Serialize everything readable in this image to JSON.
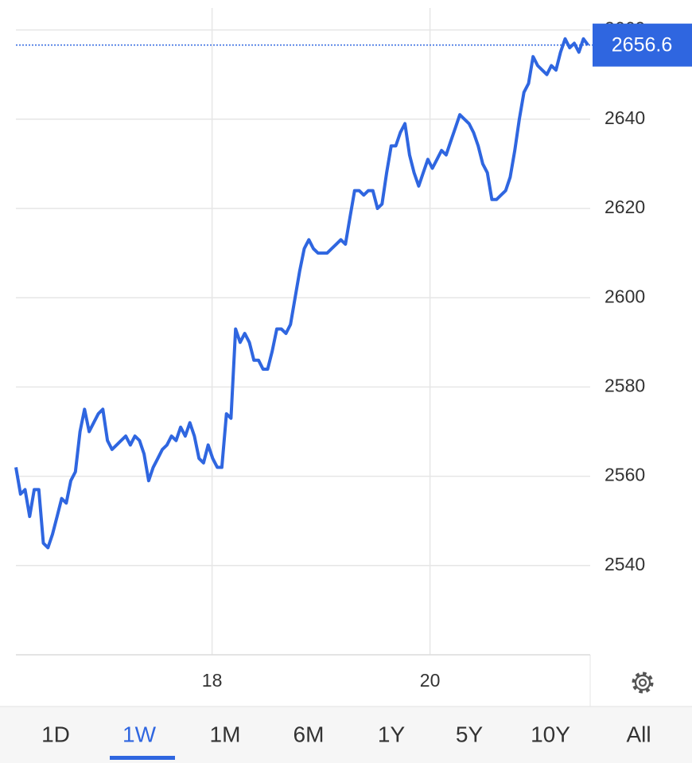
{
  "chart_data": {
    "type": "line",
    "x": [
      16.2,
      16.242,
      16.284,
      16.326,
      16.368,
      16.41,
      16.452,
      16.494,
      16.536,
      16.578,
      16.62,
      16.662,
      16.704,
      16.746,
      16.788,
      16.83,
      16.872,
      16.914,
      16.956,
      16.998,
      17.04,
      17.082,
      17.124,
      17.166,
      17.208,
      17.25,
      17.292,
      17.334,
      17.376,
      17.418,
      17.46,
      17.502,
      17.544,
      17.586,
      17.628,
      17.67,
      17.712,
      17.754,
      17.796,
      17.838,
      17.88,
      17.922,
      17.964,
      18.006,
      18.048,
      18.09,
      18.132,
      18.174,
      18.216,
      18.258,
      18.3,
      18.342,
      18.384,
      18.426,
      18.468,
      18.51,
      18.552,
      18.594,
      18.636,
      18.678,
      18.72,
      18.762,
      18.804,
      18.846,
      18.888,
      18.93,
      18.972,
      19.014,
      19.056,
      19.098,
      19.14,
      19.182,
      19.224,
      19.266,
      19.308,
      19.35,
      19.392,
      19.434,
      19.476,
      19.518,
      19.56,
      19.602,
      19.644,
      19.686,
      19.728,
      19.77,
      19.812,
      19.854,
      19.896,
      19.938,
      19.98,
      20.022,
      20.064,
      20.106,
      20.148,
      20.19,
      20.232,
      20.274,
      20.316,
      20.358,
      20.4,
      20.442,
      20.484,
      20.526,
      20.568,
      20.61,
      20.652,
      20.694,
      20.736,
      20.778,
      20.82,
      20.862,
      20.904,
      20.946,
      20.988,
      21.03,
      21.072,
      21.114,
      21.156,
      21.198,
      21.24,
      21.282,
      21.324,
      21.366,
      21.408,
      21.45
    ],
    "series": [
      {
        "color": "#2f66e0",
        "values": [
          2562,
          2556,
          2557,
          2551,
          2557,
          2557,
          2545,
          2544,
          2547,
          2551,
          2555,
          2554,
          2559,
          2561,
          2570,
          2575,
          2570,
          2572,
          2574,
          2575,
          2568,
          2566,
          2567,
          2568,
          2569,
          2567,
          2569,
          2568,
          2565,
          2559,
          2562,
          2564,
          2566,
          2567,
          2569,
          2568,
          2571,
          2569,
          2572,
          2569,
          2564,
          2563,
          2567,
          2564,
          2562,
          2562,
          2574,
          2573,
          2593,
          2590,
          2592,
          2590,
          2586,
          2586,
          2584,
          2584,
          2588,
          2593,
          2593,
          2592,
          2594,
          2600,
          2606,
          2611,
          2613,
          2611,
          2610,
          2610,
          2610,
          2611,
          2612,
          2613,
          2612,
          2618,
          2624,
          2624,
          2623,
          2624,
          2624,
          2620,
          2621,
          2628,
          2634,
          2634,
          2637,
          2639,
          2632,
          2628,
          2625,
          2628,
          2631,
          2629,
          2631,
          2633,
          2632,
          2635,
          2638,
          2641,
          2640,
          2639,
          2637,
          2634,
          2630,
          2628,
          2622,
          2622,
          2623,
          2624,
          2627,
          2633,
          2640,
          2646,
          2648,
          2654,
          2652,
          2651,
          2650,
          2652,
          2651,
          2655,
          2658,
          2656,
          2657,
          2655,
          2658,
          2656.6
        ]
      }
    ],
    "xlim": [
      16.2,
      21.47
    ],
    "xticks": [
      18,
      20
    ],
    "ylim": [
      2520,
      2666.7
    ],
    "yticks": [
      2540,
      2560,
      2580,
      2600,
      2620,
      2640,
      2660
    ],
    "grid": true,
    "range_tabs": [
      "1D",
      "1W",
      "1M",
      "6M",
      "1Y",
      "5Y",
      "10Y",
      "All"
    ],
    "selected_tab": 1
  }
}
